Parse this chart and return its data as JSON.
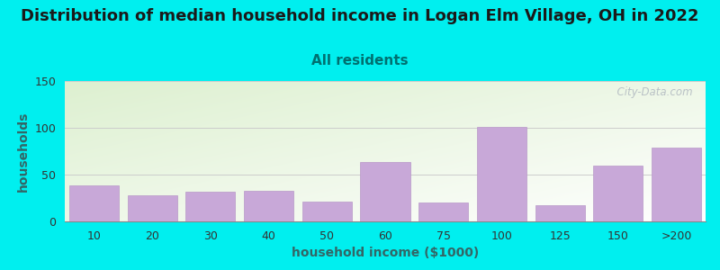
{
  "title": "Distribution of median household income in Logan Elm Village, OH in 2022",
  "subtitle": "All residents",
  "xlabel": "household income ($1000)",
  "ylabel": "households",
  "categories": [
    "10",
    "20",
    "30",
    "40",
    "50",
    "60",
    "75",
    "100",
    "125",
    "150",
    ">200"
  ],
  "values": [
    38,
    28,
    32,
    33,
    21,
    63,
    20,
    101,
    17,
    60,
    79
  ],
  "bar_color": "#c8a8d8",
  "bar_edgecolor": "#b898c8",
  "ylim": [
    0,
    150
  ],
  "yticks": [
    0,
    50,
    100,
    150
  ],
  "background_outer": "#00efef",
  "bg_top_left": "#ddf0d0",
  "bg_bottom_right": "#ffffff",
  "title_fontsize": 13,
  "subtitle_fontsize": 11,
  "subtitle_color": "#007070",
  "axis_label_fontsize": 10,
  "tick_fontsize": 9,
  "watermark_text": "  City-Data.com",
  "watermark_color": "#b0b8c0"
}
